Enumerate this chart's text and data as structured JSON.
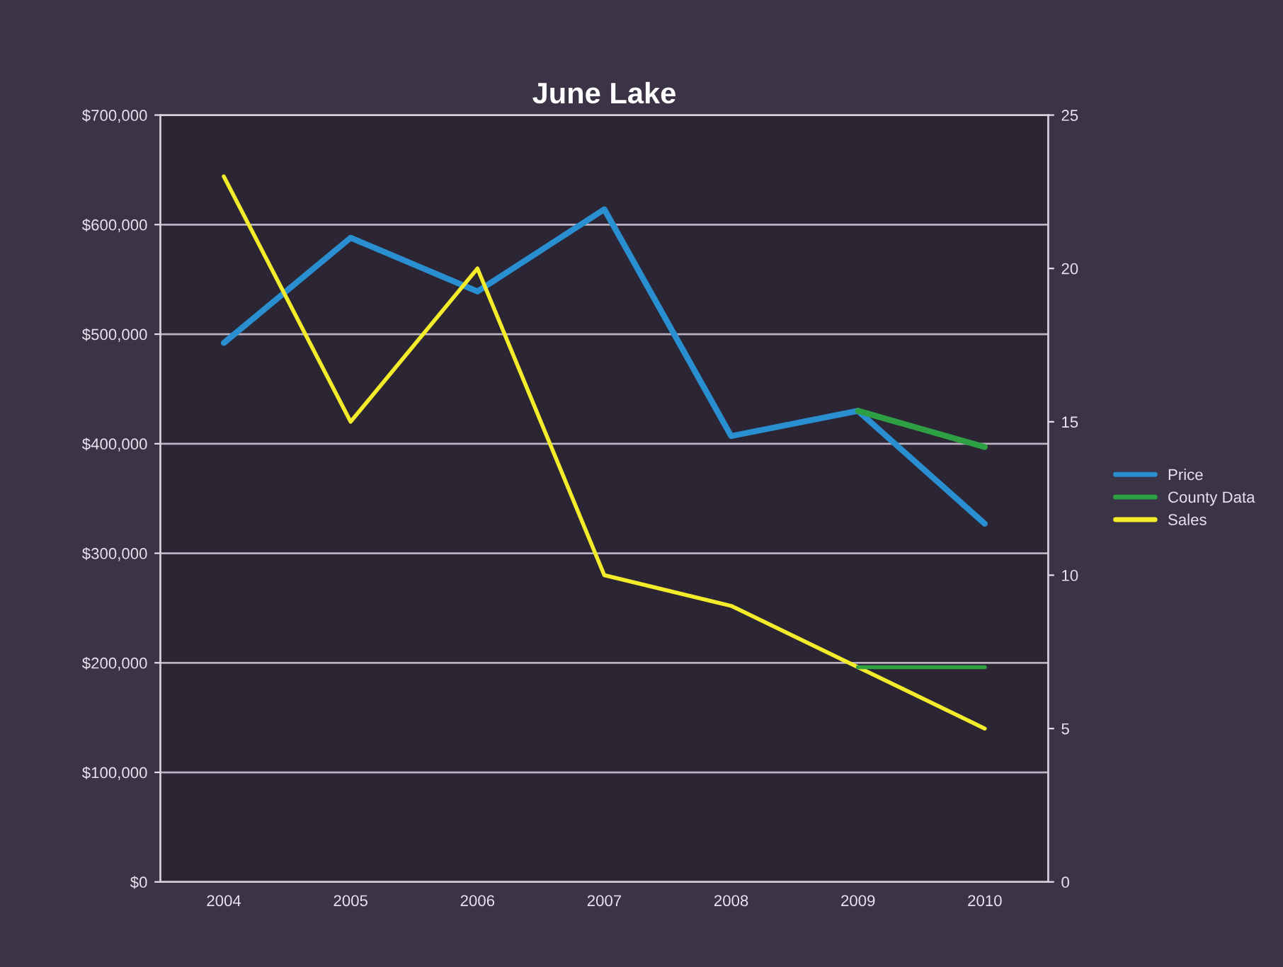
{
  "chart_data": {
    "type": "line",
    "title": "June Lake",
    "categories": [
      "2004",
      "2005",
      "2006",
      "2007",
      "2008",
      "2009",
      "2010"
    ],
    "series": [
      {
        "name": "Price",
        "color": "#2a8fd0",
        "values": [
          492000,
          588000,
          539000,
          614000,
          407000,
          430000,
          327000
        ]
      },
      {
        "name": "County Data",
        "color": "#2ea043",
        "values": [
          null,
          null,
          null,
          null,
          null,
          430000,
          397000
        ]
      },
      {
        "name": "Sales",
        "color": "#f2ec2a",
        "axis": "y2",
        "values": [
          23,
          15,
          20,
          10,
          9,
          7,
          5
        ]
      },
      {
        "color": "#2ea043",
        "axis": "y2",
        "values": [
          null,
          null,
          null,
          null,
          null,
          7,
          7
        ]
      }
    ],
    "ylim": [
      0,
      700000
    ],
    "yticks": [
      {
        "value": 0,
        "label": "$0"
      },
      {
        "value": 100000,
        "label": "$100,000"
      },
      {
        "value": 200000,
        "label": "$200,000"
      },
      {
        "value": 300000,
        "label": "$300,000"
      },
      {
        "value": 400000,
        "label": "$400,000"
      },
      {
        "value": 500000,
        "label": "$500,000"
      },
      {
        "value": 600000,
        "label": "$600,000"
      },
      {
        "value": 700000,
        "label": "$700,000"
      }
    ],
    "y2lim": [
      0,
      25
    ],
    "y2ticks": [
      0,
      5,
      10,
      15,
      20,
      25
    ],
    "grid": "y",
    "legend": "right",
    "marker": "none",
    "line_style": "solid"
  }
}
